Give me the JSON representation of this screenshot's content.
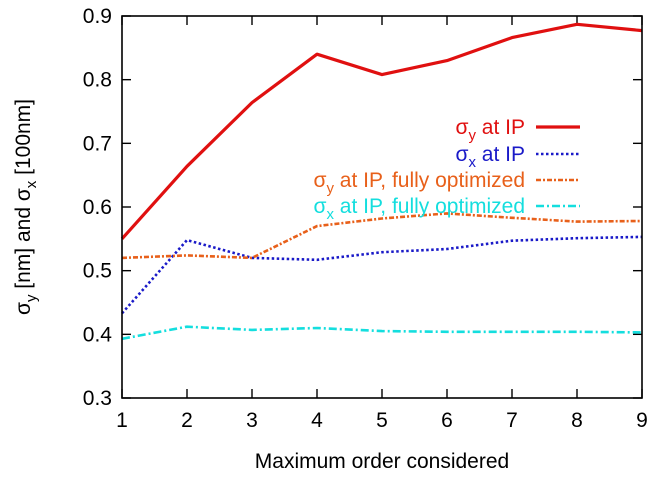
{
  "chart_data": {
    "type": "line",
    "xlabel": "Maximum order considered",
    "ylabel": {
      "s1": "σ",
      "sub1": "y",
      "mid": " [nm] and  ",
      "s2": "σ",
      "sub2": "x",
      "end": " [100nm]"
    },
    "x": [
      1,
      2,
      3,
      4,
      5,
      6,
      7,
      8,
      9
    ],
    "xlim": [
      1,
      9
    ],
    "ylim": [
      0.3,
      0.9
    ],
    "xticks": [
      "1",
      "2",
      "3",
      "4",
      "5",
      "6",
      "7",
      "8",
      "9"
    ],
    "yticks": [
      "0.3",
      "0.4",
      "0.5",
      "0.6",
      "0.7",
      "0.8",
      "0.9"
    ],
    "grid": false,
    "legend_position": "right",
    "series": [
      {
        "symbol": "σ",
        "sub": "y",
        "label": " at IP",
        "color": "#e01010",
        "style": "solid",
        "values": [
          0.55,
          0.664,
          0.764,
          0.84,
          0.808,
          0.83,
          0.866,
          0.887,
          0.877
        ]
      },
      {
        "symbol": "σ",
        "sub": "x",
        "label": " at IP",
        "color": "#1a1ac8",
        "style": "dotted",
        "values": [
          0.433,
          0.548,
          0.52,
          0.517,
          0.529,
          0.534,
          0.547,
          0.551,
          0.553
        ]
      },
      {
        "symbol": "σ",
        "sub": "y",
        "label": " at IP, fully optimized",
        "color": "#e8601a",
        "style": "dashed-dotted",
        "values": [
          0.52,
          0.524,
          0.52,
          0.57,
          0.582,
          0.59,
          0.583,
          0.577,
          0.578
        ]
      },
      {
        "symbol": "σ",
        "sub": "x",
        "label": "  at IP, fully optimized",
        "color": "#14dede",
        "style": "dash-dot",
        "values": [
          0.393,
          0.412,
          0.407,
          0.41,
          0.405,
          0.404,
          0.404,
          0.404,
          0.403
        ]
      }
    ]
  }
}
